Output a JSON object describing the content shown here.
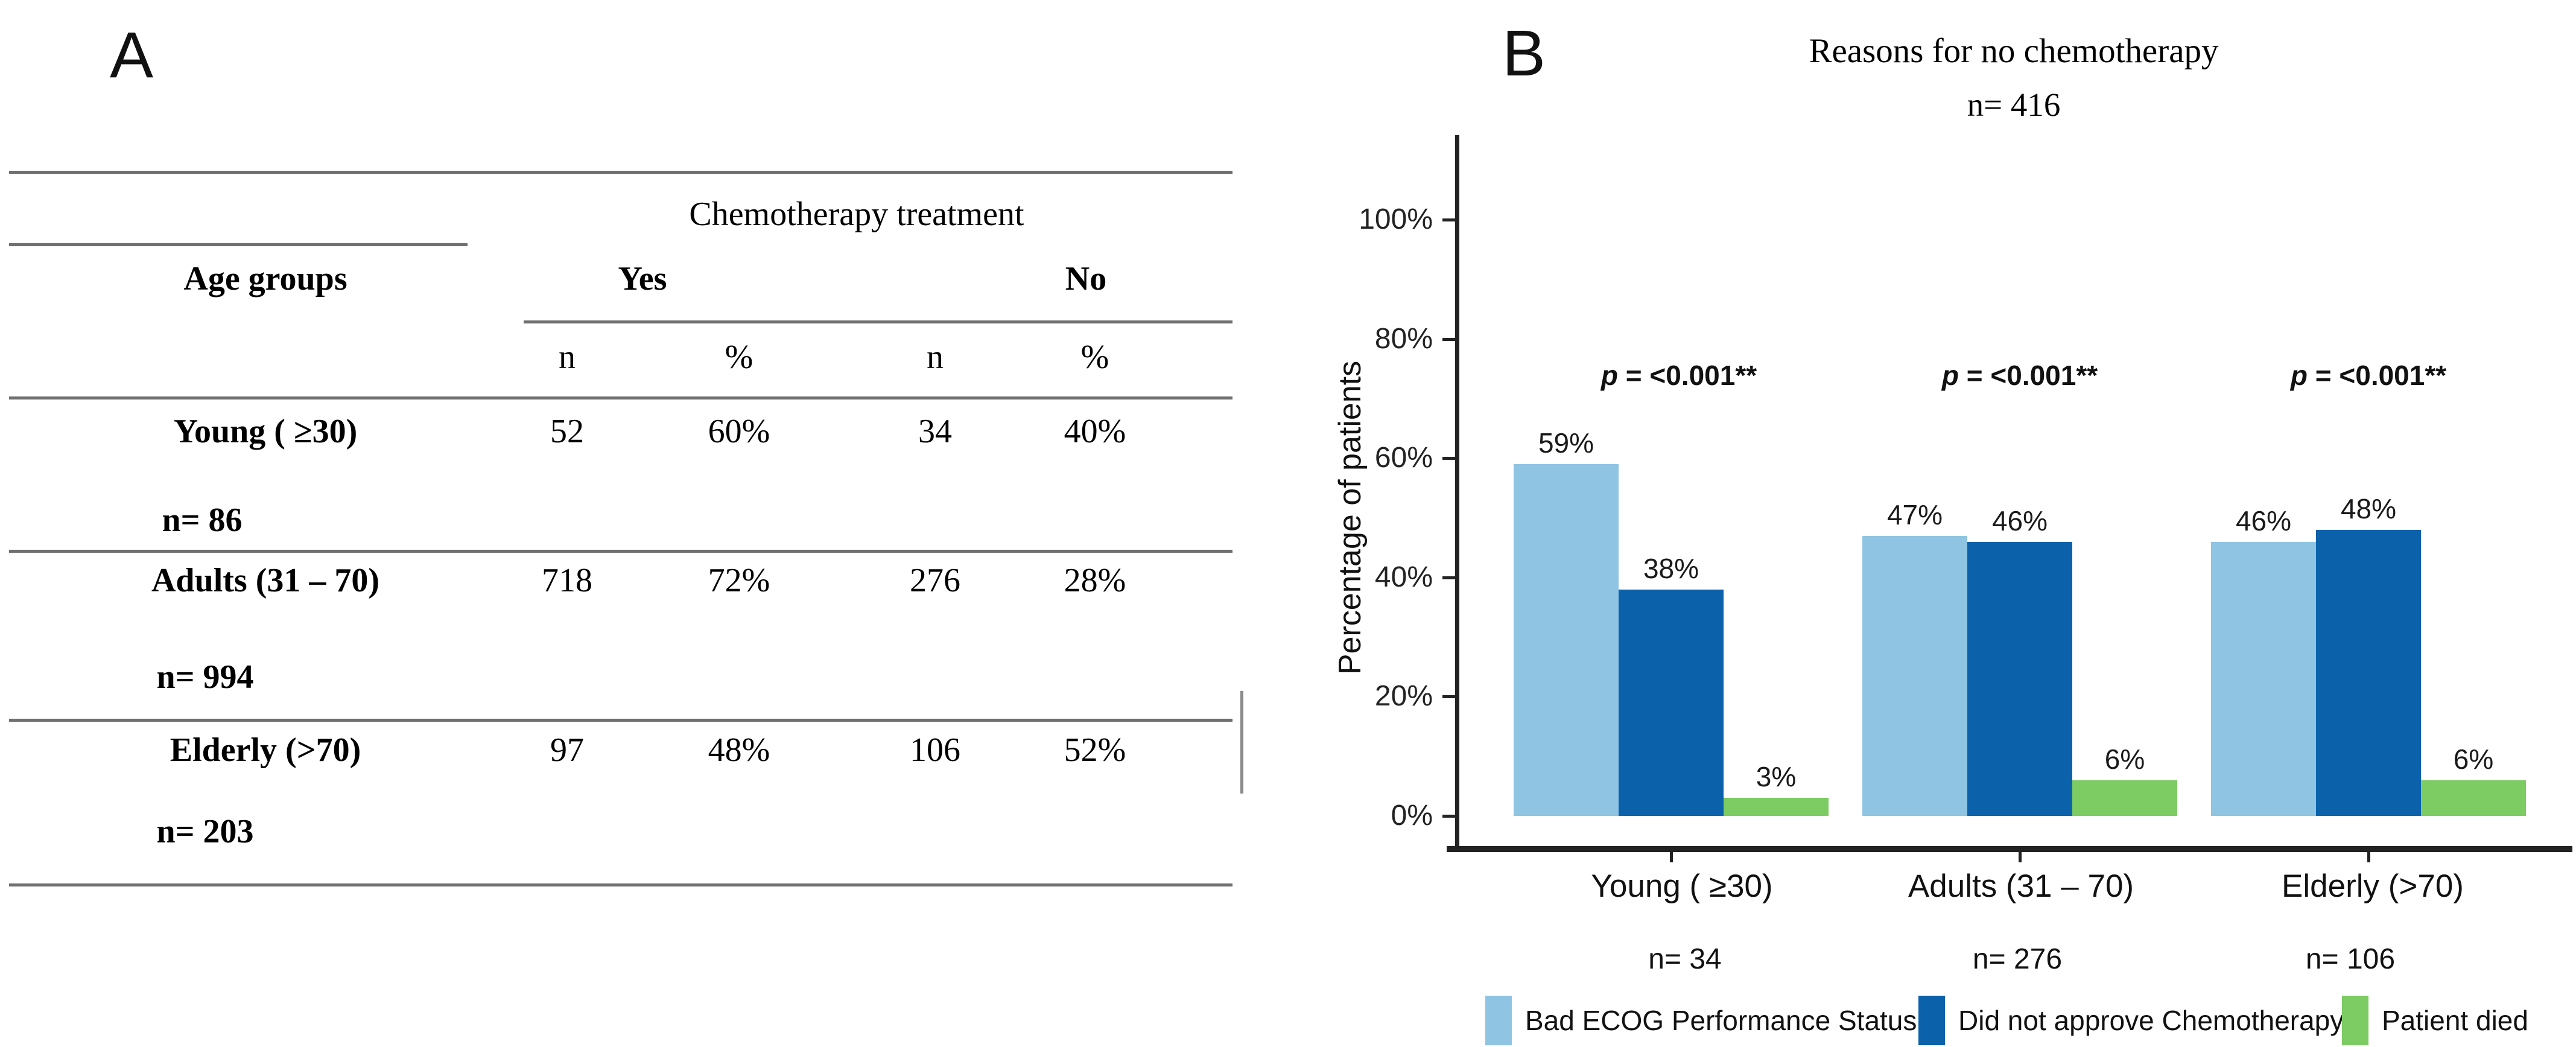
{
  "panel_labels": {
    "a": "A",
    "b": "B"
  },
  "chart_data": [
    {
      "type": "table",
      "panel": "A",
      "span_header": "Chemotherapy treatment",
      "stub_header": "Age groups",
      "group_headers": [
        "Yes",
        "No"
      ],
      "sub_headers": [
        "n",
        "%",
        "n",
        "%"
      ],
      "rows": [
        {
          "label": "Young ( ≥30)",
          "n_label": "n= 86",
          "values": [
            "52",
            "60%",
            "34",
            "40%"
          ]
        },
        {
          "label": "Adults (31 – 70)",
          "n_label": "n= 994",
          "values": [
            "718",
            "72%",
            "276",
            "28%"
          ]
        },
        {
          "label": "Elderly (>70)",
          "n_label": "n= 203",
          "values": [
            "97",
            "48%",
            "106",
            "52%"
          ]
        }
      ]
    },
    {
      "type": "bar",
      "panel": "B",
      "title": "Reasons for no chemotherapy",
      "subtitle": "n= 416",
      "ylabel": "Percentage of patients",
      "ylim": [
        0,
        100
      ],
      "yticks": [
        "0%",
        "20%",
        "40%",
        "60%",
        "80%",
        "100%"
      ],
      "grid": false,
      "legend_position": "bottom",
      "categories": [
        "Young ( ≥30)",
        "Adults (31 – 70)",
        "Elderly (>70)"
      ],
      "category_ns": [
        "n= 34",
        "n= 276",
        "n= 106"
      ],
      "p_annotations": [
        {
          "sym": "p",
          "rest": " = <0.001**"
        },
        {
          "sym": "p",
          "rest": " = <0.001**"
        },
        {
          "sym": "p",
          "rest": " = <0.001**"
        }
      ],
      "series": [
        {
          "name": "Bad ECOG Performance Status",
          "color": "#8fc4e3",
          "values": [
            59,
            47,
            46
          ],
          "labels": [
            "59%",
            "47%",
            "46%"
          ]
        },
        {
          "name": "Did not approve Chemotherapy",
          "color": "#0b62ab",
          "values": [
            38,
            46,
            48
          ],
          "labels": [
            "38%",
            "46%",
            "48%"
          ]
        },
        {
          "name": "Patient died",
          "color": "#7ccb63",
          "values": [
            3,
            6,
            6
          ],
          "labels": [
            "3%",
            "6%",
            "6%"
          ]
        }
      ]
    }
  ]
}
